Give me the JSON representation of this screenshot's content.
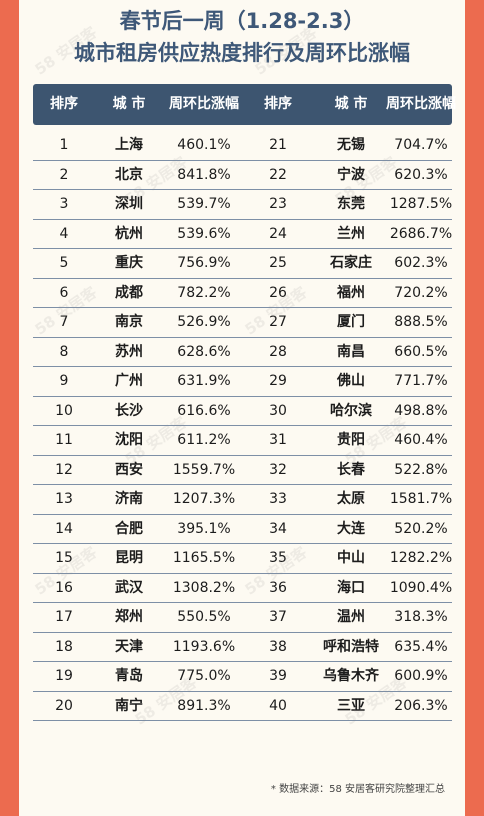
{
  "title_line1": "春节后一周（1.28-2.3）",
  "title_line2": "城市租房供应热度排行及周环比涨幅",
  "headers": [
    "排序",
    "城 市",
    "周环比涨幅",
    "排序",
    "城 市",
    "周环比涨幅"
  ],
  "rows": [
    {
      "r1": "1",
      "c1": "上海",
      "v1": "460.1%",
      "r2": "21",
      "c2": "无锡",
      "v2": "704.7%"
    },
    {
      "r1": "2",
      "c1": "北京",
      "v1": "841.8%",
      "r2": "22",
      "c2": "宁波",
      "v2": "620.3%"
    },
    {
      "r1": "3",
      "c1": "深圳",
      "v1": "539.7%",
      "r2": "23",
      "c2": "东莞",
      "v2": "1287.5%"
    },
    {
      "r1": "4",
      "c1": "杭州",
      "v1": "539.6%",
      "r2": "24",
      "c2": "兰州",
      "v2": "2686.7%"
    },
    {
      "r1": "5",
      "c1": "重庆",
      "v1": "756.9%",
      "r2": "25",
      "c2": "石家庄",
      "v2": "602.3%"
    },
    {
      "r1": "6",
      "c1": "成都",
      "v1": "782.2%",
      "r2": "26",
      "c2": "福州",
      "v2": "720.2%"
    },
    {
      "r1": "7",
      "c1": "南京",
      "v1": "526.9%",
      "r2": "27",
      "c2": "厦门",
      "v2": "888.5%"
    },
    {
      "r1": "8",
      "c1": "苏州",
      "v1": "628.6%",
      "r2": "28",
      "c2": "南昌",
      "v2": "660.5%"
    },
    {
      "r1": "9",
      "c1": "广州",
      "v1": "631.9%",
      "r2": "29",
      "c2": "佛山",
      "v2": "771.7%"
    },
    {
      "r1": "10",
      "c1": "长沙",
      "v1": "616.6%",
      "r2": "30",
      "c2": "哈尔滨",
      "v2": "498.8%"
    },
    {
      "r1": "11",
      "c1": "沈阳",
      "v1": "611.2%",
      "r2": "31",
      "c2": "贵阳",
      "v2": "460.4%"
    },
    {
      "r1": "12",
      "c1": "西安",
      "v1": "1559.7%",
      "r2": "32",
      "c2": "长春",
      "v2": "522.8%"
    },
    {
      "r1": "13",
      "c1": "济南",
      "v1": "1207.3%",
      "r2": "33",
      "c2": "太原",
      "v2": "1581.7%"
    },
    {
      "r1": "14",
      "c1": "合肥",
      "v1": "395.1%",
      "r2": "34",
      "c2": "大连",
      "v2": "520.2%"
    },
    {
      "r1": "15",
      "c1": "昆明",
      "v1": "1165.5%",
      "r2": "35",
      "c2": "中山",
      "v2": "1282.2%"
    },
    {
      "r1": "16",
      "c1": "武汉",
      "v1": "1308.2%",
      "r2": "36",
      "c2": "海口",
      "v2": "1090.4%"
    },
    {
      "r1": "17",
      "c1": "郑州",
      "v1": "550.5%",
      "r2": "37",
      "c2": "温州",
      "v2": "318.3%"
    },
    {
      "r1": "18",
      "c1": "天津",
      "v1": "1193.6%",
      "r2": "38",
      "c2": "呼和浩特",
      "v2": "635.4%"
    },
    {
      "r1": "19",
      "c1": "青岛",
      "v1": "775.0%",
      "r2": "39",
      "c2": "乌鲁木齐",
      "v2": "600.9%"
    },
    {
      "r1": "20",
      "c1": "南宁",
      "v1": "891.3%",
      "r2": "40",
      "c2": "三亚",
      "v2": "206.3%"
    }
  ],
  "footer": "* 数据来源：58 安居客研究院整理汇总",
  "watermark_text": "58 安居客",
  "colors": {
    "background": "#ec6b4f",
    "card": "#fdfaf2",
    "header": "#3d5570",
    "title": "#3e5878"
  }
}
